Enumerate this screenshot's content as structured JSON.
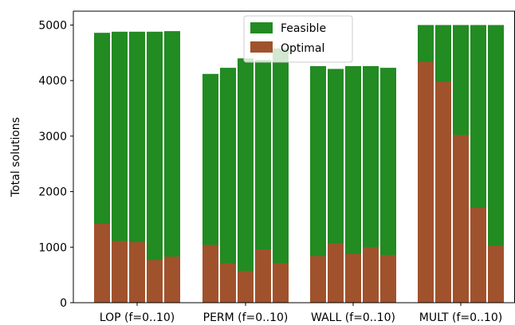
{
  "chart_data": {
    "type": "bar",
    "stacked_overlay": true,
    "ylabel": "Total solutions",
    "ylim": [
      0,
      5250
    ],
    "yticks": [
      0,
      1000,
      2000,
      3000,
      4000,
      5000
    ],
    "groups": [
      {
        "label": "LOP (f=0..10)",
        "feasible": [
          4860,
          4880,
          4880,
          4880,
          4890
        ],
        "optimal": [
          1420,
          1110,
          1090,
          770,
          830
        ]
      },
      {
        "label": "PERM (f=0..10)",
        "feasible": [
          4120,
          4230,
          4400,
          4370,
          4580
        ],
        "optimal": [
          1040,
          710,
          570,
          960,
          710
        ]
      },
      {
        "label": "WALL (f=0..10)",
        "feasible": [
          4260,
          4210,
          4260,
          4260,
          4230
        ],
        "optimal": [
          840,
          1070,
          880,
          1000,
          860
        ]
      },
      {
        "label": "MULT (f=0..10)",
        "feasible": [
          5000,
          5000,
          5000,
          5000,
          5000
        ],
        "optimal": [
          4340,
          3980,
          3020,
          1710,
          1030
        ]
      }
    ],
    "series": [
      {
        "name": "Feasible",
        "color": "#228b22"
      },
      {
        "name": "Optimal",
        "color": "#a0522d"
      }
    ],
    "legend": "top-center",
    "grid": false
  }
}
